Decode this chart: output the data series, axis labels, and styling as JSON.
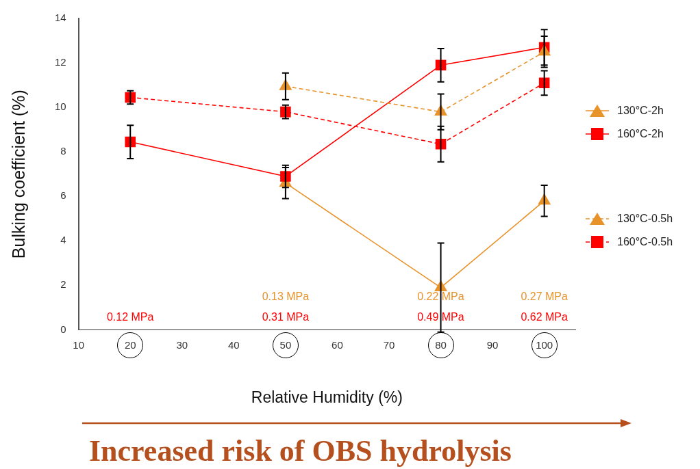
{
  "chart_data": {
    "type": "line",
    "xlabel": "Relative Humidity (%)",
    "ylabel": "Bulking coefficient (%)",
    "xlim": [
      10,
      106
    ],
    "xticks": [
      10,
      20,
      30,
      40,
      50,
      60,
      70,
      80,
      90,
      100
    ],
    "ylim": [
      0,
      14
    ],
    "yticks": [
      0,
      2,
      4,
      6,
      8,
      10,
      12,
      14
    ],
    "grid": false,
    "legend": "right",
    "series": [
      {
        "name": "130°C-2h",
        "color": "#e8922a",
        "marker": "triangle",
        "line_style": "solid",
        "x": [
          50,
          80,
          100
        ],
        "values": [
          6.6,
          1.9,
          5.8
        ],
        "errors": [
          0.7,
          2.0,
          0.7
        ]
      },
      {
        "name": "160°C-2h",
        "color": "#ff0000",
        "marker": "square",
        "line_style": "solid",
        "x": [
          20,
          50,
          80,
          100
        ],
        "values": [
          8.45,
          6.9,
          11.9,
          12.7
        ],
        "errors": [
          0.75,
          0.5,
          0.75,
          0.8
        ]
      },
      {
        "name": "130°C-0.5h",
        "color": "#e8922a",
        "marker": "triangle",
        "line_style": "dashed",
        "x": [
          50,
          80,
          100
        ],
        "values": [
          10.95,
          9.8,
          12.5
        ],
        "errors": [
          0.6,
          0.8,
          0.7
        ]
      },
      {
        "name": "160°C-0.5h",
        "color": "#ff0000",
        "marker": "square",
        "line_style": "dashed",
        "x": [
          20,
          50,
          80,
          100
        ],
        "values": [
          10.45,
          9.8,
          8.35,
          11.1
        ],
        "errors": [
          0.3,
          0.3,
          0.8,
          0.55
        ]
      }
    ],
    "annotations": [
      "0.12 MPa",
      "0.13 MPa",
      "0.31 MPa",
      "0.22 MPa",
      "0.49 MPa",
      "0.27 MPa",
      "0.62 MPa",
      "Increased risk of OBS hydrolysis"
    ]
  }
}
